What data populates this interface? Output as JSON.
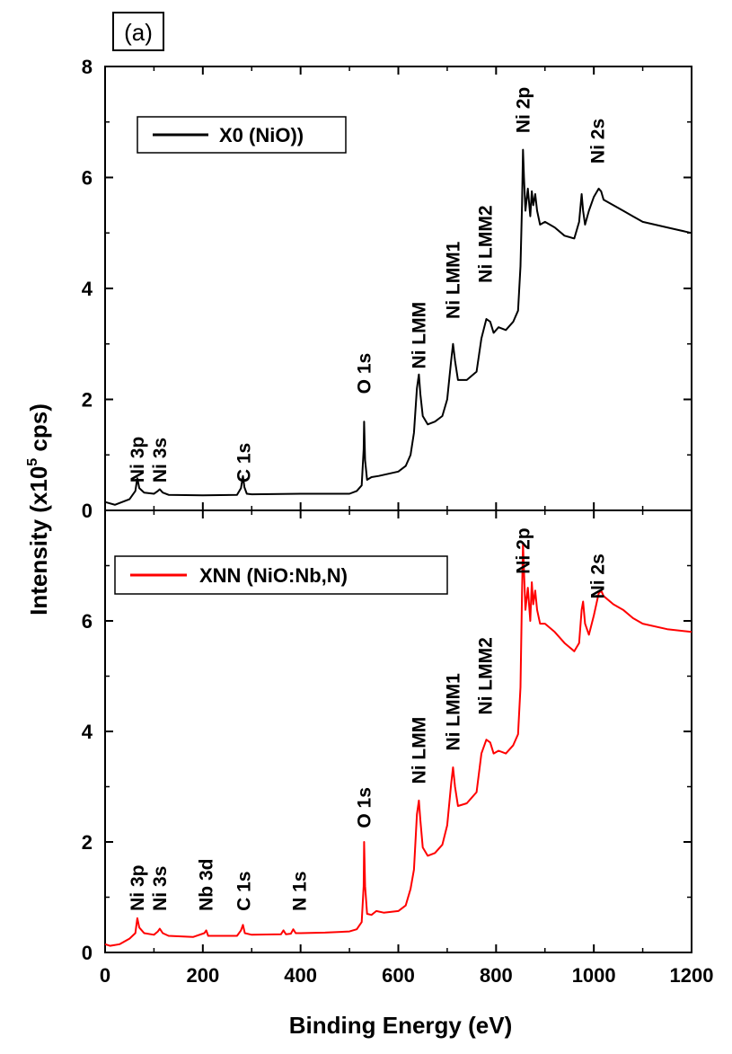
{
  "panel_label": "(a)",
  "chart_data": {
    "type": "line",
    "xlabel": "Binding Energy  (eV)",
    "ylabel_prefix": "Intensity  (x10",
    "ylabel_exp": "5",
    "ylabel_suffix": " cps)",
    "xlim": [
      0,
      1200
    ],
    "xticks": [
      "0",
      "200",
      "400",
      "600",
      "800",
      "1000",
      "1200"
    ],
    "panels": [
      {
        "legend": "X0 (NiO))",
        "color": "#000000",
        "ylim": [
          0,
          8
        ],
        "yticks": [
          "0",
          "2",
          "4",
          "6",
          "8"
        ],
        "peaks": [
          {
            "label": "Ni 3p",
            "x": 66
          },
          {
            "label": "Ni 3s",
            "x": 112
          },
          {
            "label": "C 1s",
            "x": 284
          },
          {
            "label": "O 1s",
            "x": 530
          },
          {
            "label": "Ni LMM",
            "x": 642
          },
          {
            "label": "Ni LMM1",
            "x": 712
          },
          {
            "label": "Ni LMM2",
            "x": 778
          },
          {
            "label": "Ni 2p",
            "x": 855
          },
          {
            "label": "Ni 2s",
            "x": 1008
          }
        ],
        "label_y": [
          0.5,
          0.5,
          0.5,
          2.1,
          2.55,
          3.45,
          4.1,
          6.8,
          6.25
        ],
        "x": [
          0,
          20,
          50,
          62,
          66,
          70,
          80,
          100,
          108,
          112,
          118,
          130,
          200,
          270,
          278,
          282,
          285,
          290,
          300,
          400,
          500,
          515,
          525,
          529,
          530,
          532,
          536,
          545,
          560,
          600,
          615,
          625,
          632,
          638,
          642,
          645,
          650,
          660,
          675,
          690,
          700,
          708,
          712,
          716,
          722,
          740,
          760,
          770,
          780,
          788,
          795,
          805,
          820,
          835,
          845,
          850,
          853,
          855,
          857,
          860,
          865,
          870,
          873,
          876,
          880,
          884,
          890,
          900,
          920,
          940,
          960,
          970,
          975,
          978,
          982,
          990,
          1000,
          1010,
          1015,
          1020,
          1040,
          1060,
          1080,
          1100,
          1150,
          1200
        ],
        "y": [
          0.15,
          0.1,
          0.2,
          0.35,
          0.58,
          0.4,
          0.32,
          0.3,
          0.35,
          0.38,
          0.32,
          0.28,
          0.27,
          0.28,
          0.4,
          0.62,
          0.42,
          0.3,
          0.29,
          0.3,
          0.3,
          0.35,
          0.45,
          1.1,
          1.6,
          0.9,
          0.55,
          0.6,
          0.62,
          0.7,
          0.8,
          1.0,
          1.4,
          2.2,
          2.45,
          2.1,
          1.7,
          1.55,
          1.6,
          1.7,
          2.0,
          2.7,
          3.0,
          2.7,
          2.35,
          2.35,
          2.5,
          3.1,
          3.45,
          3.4,
          3.2,
          3.3,
          3.25,
          3.4,
          3.6,
          4.4,
          5.5,
          6.5,
          6.0,
          5.4,
          5.8,
          5.3,
          5.75,
          5.5,
          5.7,
          5.4,
          5.15,
          5.2,
          5.1,
          4.95,
          4.9,
          5.2,
          5.7,
          5.4,
          5.15,
          5.4,
          5.65,
          5.8,
          5.75,
          5.6,
          5.5,
          5.4,
          5.3,
          5.2,
          5.1,
          5.0
        ]
      },
      {
        "legend": "XNN (NiO:Nb,N)",
        "color": "#ff0000",
        "ylim": [
          0,
          8
        ],
        "yticks": [
          "0",
          "2",
          "4",
          "6"
        ],
        "peaks": [
          {
            "label": "Ni 3p",
            "x": 66
          },
          {
            "label": "Ni 3s",
            "x": 112
          },
          {
            "label": "Nb 3d",
            "x": 207
          },
          {
            "label": "C 1s",
            "x": 284
          },
          {
            "label": "N 1s",
            "x": 398
          },
          {
            "label": "O 1s",
            "x": 530
          },
          {
            "label": "Ni LMM",
            "x": 642
          },
          {
            "label": "Ni LMM1",
            "x": 712
          },
          {
            "label": "Ni LMM2",
            "x": 778
          },
          {
            "label": "Ni 2p",
            "x": 855
          },
          {
            "label": "Ni 2s",
            "x": 1008
          }
        ],
        "label_y": [
          0.75,
          0.75,
          0.75,
          0.75,
          0.75,
          2.25,
          3.05,
          3.65,
          4.3,
          6.85,
          6.4
        ],
        "x": [
          0,
          10,
          30,
          50,
          62,
          66,
          70,
          80,
          100,
          108,
          112,
          118,
          130,
          180,
          203,
          207,
          211,
          230,
          270,
          278,
          282,
          286,
          300,
          360,
          365,
          370,
          380,
          385,
          390,
          400,
          450,
          500,
          515,
          525,
          529,
          530,
          532,
          536,
          545,
          555,
          570,
          600,
          615,
          625,
          632,
          638,
          642,
          645,
          650,
          660,
          675,
          690,
          700,
          708,
          712,
          716,
          722,
          740,
          760,
          770,
          780,
          788,
          795,
          805,
          820,
          835,
          845,
          850,
          853,
          855,
          857,
          860,
          865,
          870,
          873,
          876,
          880,
          884,
          890,
          900,
          920,
          940,
          960,
          970,
          975,
          978,
          982,
          990,
          1000,
          1010,
          1015,
          1020,
          1040,
          1060,
          1080,
          1100,
          1150,
          1200
        ],
        "y": [
          0.15,
          0.12,
          0.15,
          0.25,
          0.35,
          0.62,
          0.45,
          0.35,
          0.32,
          0.38,
          0.43,
          0.35,
          0.3,
          0.28,
          0.35,
          0.4,
          0.3,
          0.3,
          0.3,
          0.4,
          0.5,
          0.35,
          0.32,
          0.33,
          0.4,
          0.33,
          0.34,
          0.42,
          0.35,
          0.35,
          0.36,
          0.38,
          0.42,
          0.55,
          1.2,
          2.0,
          1.2,
          0.7,
          0.68,
          0.75,
          0.72,
          0.75,
          0.85,
          1.15,
          1.5,
          2.5,
          2.75,
          2.4,
          1.9,
          1.75,
          1.8,
          1.95,
          2.3,
          3.05,
          3.35,
          3.0,
          2.65,
          2.7,
          2.9,
          3.6,
          3.85,
          3.8,
          3.6,
          3.65,
          3.6,
          3.75,
          3.95,
          4.8,
          6.5,
          7.4,
          6.9,
          6.2,
          6.6,
          6.0,
          6.7,
          6.3,
          6.55,
          6.2,
          5.95,
          5.95,
          5.8,
          5.6,
          5.45,
          5.6,
          6.2,
          6.35,
          5.95,
          5.75,
          6.1,
          6.5,
          6.55,
          6.45,
          6.3,
          6.2,
          6.05,
          5.95,
          5.85,
          5.8
        ]
      }
    ]
  }
}
